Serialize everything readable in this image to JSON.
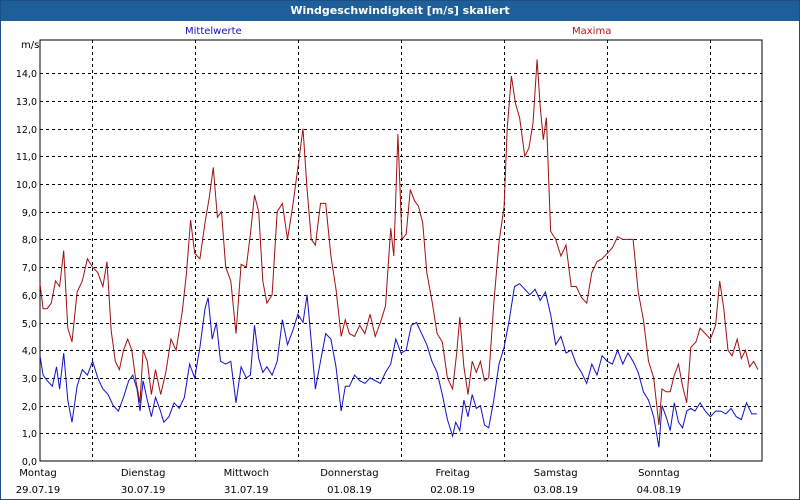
{
  "window": {
    "title": "Windgeschwindigkeit [m/s] skaliert"
  },
  "legend": {
    "mean_label": "Mittelwerte",
    "max_label": "Maxima"
  },
  "colors": {
    "mean": "#1010c8",
    "max": "#a01010",
    "grid": "#000000"
  },
  "chart_data": {
    "type": "line",
    "title": "Windgeschwindigkeit [m/s] skaliert",
    "ylabel": "m/s",
    "ylim": [
      0,
      15
    ],
    "yticks": [
      "0,0",
      "1,0",
      "2,0",
      "3,0",
      "4,0",
      "5,0",
      "6,0",
      "7,0",
      "8,0",
      "9,0",
      "10,0",
      "11,0",
      "12,0",
      "13,0",
      "14,0"
    ],
    "xlim": [
      0,
      7
    ],
    "xticks": [
      {
        "day": "Montag",
        "date": "29.07.19"
      },
      {
        "day": "Dienstag",
        "date": "30.07.19"
      },
      {
        "day": "Mittwoch",
        "date": "31.07.19"
      },
      {
        "day": "Donnerstag",
        "date": "01.08.19"
      },
      {
        "day": "Freitag",
        "date": "02.08.19"
      },
      {
        "day": "Samstag",
        "date": "03.08.19"
      },
      {
        "day": "Sonntag",
        "date": "04.08.19"
      }
    ],
    "grid": true,
    "series": [
      {
        "name": "Mittelwerte",
        "color": "#1010c8",
        "points": [
          [
            0.0,
            3.8
          ],
          [
            0.03,
            3.1
          ],
          [
            0.07,
            2.9
          ],
          [
            0.12,
            2.7
          ],
          [
            0.16,
            3.4
          ],
          [
            0.19,
            2.6
          ],
          [
            0.23,
            3.9
          ],
          [
            0.27,
            2.2
          ],
          [
            0.31,
            1.4
          ],
          [
            0.36,
            2.7
          ],
          [
            0.41,
            3.3
          ],
          [
            0.46,
            3.1
          ],
          [
            0.51,
            3.6
          ],
          [
            0.56,
            3.0
          ],
          [
            0.61,
            2.6
          ],
          [
            0.66,
            2.4
          ],
          [
            0.71,
            2.0
          ],
          [
            0.76,
            1.8
          ],
          [
            0.81,
            2.3
          ],
          [
            0.86,
            2.9
          ],
          [
            0.9,
            3.1
          ],
          [
            0.94,
            2.6
          ],
          [
            0.97,
            1.8
          ],
          [
            1.0,
            2.9
          ],
          [
            1.04,
            2.2
          ],
          [
            1.08,
            1.6
          ],
          [
            1.12,
            2.3
          ],
          [
            1.16,
            1.9
          ],
          [
            1.2,
            1.4
          ],
          [
            1.25,
            1.6
          ],
          [
            1.3,
            2.1
          ],
          [
            1.35,
            1.9
          ],
          [
            1.4,
            2.3
          ],
          [
            1.45,
            3.5
          ],
          [
            1.5,
            3.0
          ],
          [
            1.55,
            4.1
          ],
          [
            1.6,
            5.5
          ],
          [
            1.63,
            5.9
          ],
          [
            1.67,
            4.4
          ],
          [
            1.71,
            5.0
          ],
          [
            1.75,
            3.6
          ],
          [
            1.8,
            3.5
          ],
          [
            1.85,
            3.6
          ],
          [
            1.9,
            2.1
          ],
          [
            1.95,
            3.4
          ],
          [
            2.0,
            3.0
          ],
          [
            2.04,
            3.1
          ],
          [
            2.08,
            4.9
          ],
          [
            2.12,
            3.7
          ],
          [
            2.16,
            3.2
          ],
          [
            2.2,
            3.4
          ],
          [
            2.25,
            3.1
          ],
          [
            2.3,
            3.6
          ],
          [
            2.35,
            5.1
          ],
          [
            2.4,
            4.2
          ],
          [
            2.45,
            4.7
          ],
          [
            2.5,
            5.3
          ],
          [
            2.55,
            5.0
          ],
          [
            2.59,
            6.0
          ],
          [
            2.63,
            4.3
          ],
          [
            2.67,
            2.6
          ],
          [
            2.72,
            3.6
          ],
          [
            2.77,
            4.6
          ],
          [
            2.82,
            4.4
          ],
          [
            2.87,
            3.4
          ],
          [
            2.92,
            1.8
          ],
          [
            2.96,
            2.7
          ],
          [
            3.0,
            2.7
          ],
          [
            3.05,
            3.1
          ],
          [
            3.1,
            2.9
          ],
          [
            3.15,
            2.8
          ],
          [
            3.2,
            3.0
          ],
          [
            3.25,
            2.9
          ],
          [
            3.3,
            2.8
          ],
          [
            3.35,
            3.2
          ],
          [
            3.4,
            3.5
          ],
          [
            3.45,
            4.4
          ],
          [
            3.5,
            3.9
          ],
          [
            3.55,
            4.0
          ],
          [
            3.6,
            4.9
          ],
          [
            3.65,
            5.0
          ],
          [
            3.7,
            4.6
          ],
          [
            3.75,
            4.2
          ],
          [
            3.8,
            3.6
          ],
          [
            3.85,
            3.2
          ],
          [
            3.9,
            2.4
          ],
          [
            3.95,
            1.5
          ],
          [
            4.0,
            0.9
          ],
          [
            4.03,
            1.4
          ],
          [
            4.07,
            1.1
          ],
          [
            4.11,
            2.2
          ],
          [
            4.15,
            1.6
          ],
          [
            4.19,
            2.4
          ],
          [
            4.23,
            1.9
          ],
          [
            4.27,
            2.0
          ],
          [
            4.31,
            1.3
          ],
          [
            4.35,
            1.2
          ],
          [
            4.4,
            2.2
          ],
          [
            4.45,
            3.5
          ],
          [
            4.5,
            4.1
          ],
          [
            4.55,
            5.1
          ],
          [
            4.6,
            6.3
          ],
          [
            4.65,
            6.4
          ],
          [
            4.7,
            6.2
          ],
          [
            4.75,
            6.0
          ],
          [
            4.8,
            6.2
          ],
          [
            4.85,
            5.8
          ],
          [
            4.9,
            6.1
          ],
          [
            4.95,
            5.3
          ],
          [
            5.0,
            4.2
          ],
          [
            5.05,
            4.5
          ],
          [
            5.1,
            3.9
          ],
          [
            5.15,
            4.0
          ],
          [
            5.2,
            3.5
          ],
          [
            5.25,
            3.2
          ],
          [
            5.3,
            2.8
          ],
          [
            5.35,
            3.5
          ],
          [
            5.4,
            3.1
          ],
          [
            5.45,
            3.8
          ],
          [
            5.5,
            3.6
          ],
          [
            5.55,
            3.5
          ],
          [
            5.6,
            4.0
          ],
          [
            5.65,
            3.5
          ],
          [
            5.7,
            3.9
          ],
          [
            5.75,
            3.6
          ],
          [
            5.8,
            3.2
          ],
          [
            5.85,
            2.5
          ],
          [
            5.9,
            2.2
          ],
          [
            5.95,
            1.6
          ],
          [
            6.0,
            0.5
          ],
          [
            6.03,
            2.0
          ],
          [
            6.07,
            1.6
          ],
          [
            6.11,
            1.1
          ],
          [
            6.15,
            2.1
          ],
          [
            6.19,
            1.4
          ],
          [
            6.23,
            1.2
          ],
          [
            6.27,
            1.8
          ],
          [
            6.31,
            1.9
          ],
          [
            6.35,
            1.8
          ],
          [
            6.4,
            2.1
          ],
          [
            6.45,
            1.8
          ],
          [
            6.5,
            1.6
          ],
          [
            6.55,
            1.8
          ],
          [
            6.6,
            1.8
          ],
          [
            6.65,
            1.7
          ],
          [
            6.7,
            1.9
          ],
          [
            6.75,
            1.6
          ],
          [
            6.8,
            1.5
          ],
          [
            6.85,
            2.1
          ],
          [
            6.9,
            1.7
          ],
          [
            6.95,
            1.7
          ]
        ]
      },
      {
        "name": "Maxima",
        "color": "#a01010",
        "points": [
          [
            0.0,
            6.4
          ],
          [
            0.03,
            5.5
          ],
          [
            0.07,
            5.5
          ],
          [
            0.11,
            5.7
          ],
          [
            0.15,
            6.5
          ],
          [
            0.19,
            6.3
          ],
          [
            0.23,
            7.6
          ],
          [
            0.27,
            4.8
          ],
          [
            0.31,
            4.3
          ],
          [
            0.36,
            6.1
          ],
          [
            0.41,
            6.5
          ],
          [
            0.46,
            7.3
          ],
          [
            0.51,
            7.0
          ],
          [
            0.56,
            6.8
          ],
          [
            0.61,
            6.3
          ],
          [
            0.65,
            7.2
          ],
          [
            0.69,
            4.7
          ],
          [
            0.73,
            3.6
          ],
          [
            0.77,
            3.3
          ],
          [
            0.81,
            4.0
          ],
          [
            0.85,
            4.4
          ],
          [
            0.89,
            4.0
          ],
          [
            0.93,
            2.9
          ],
          [
            0.97,
            2.1
          ],
          [
            1.0,
            4.0
          ],
          [
            1.04,
            3.6
          ],
          [
            1.08,
            2.4
          ],
          [
            1.12,
            3.3
          ],
          [
            1.17,
            2.4
          ],
          [
            1.22,
            3.2
          ],
          [
            1.27,
            4.4
          ],
          [
            1.32,
            4.0
          ],
          [
            1.38,
            5.4
          ],
          [
            1.42,
            6.8
          ],
          [
            1.46,
            8.7
          ],
          [
            1.5,
            7.5
          ],
          [
            1.55,
            7.3
          ],
          [
            1.6,
            8.6
          ],
          [
            1.64,
            9.5
          ],
          [
            1.68,
            10.6
          ],
          [
            1.72,
            8.8
          ],
          [
            1.76,
            9.0
          ],
          [
            1.8,
            7.0
          ],
          [
            1.85,
            6.5
          ],
          [
            1.9,
            4.6
          ],
          [
            1.95,
            7.1
          ],
          [
            2.0,
            7.0
          ],
          [
            2.04,
            8.2
          ],
          [
            2.08,
            9.6
          ],
          [
            2.12,
            9.0
          ],
          [
            2.16,
            6.5
          ],
          [
            2.2,
            5.7
          ],
          [
            2.25,
            6.0
          ],
          [
            2.3,
            9.0
          ],
          [
            2.35,
            9.3
          ],
          [
            2.4,
            8.0
          ],
          [
            2.45,
            9.2
          ],
          [
            2.5,
            10.6
          ],
          [
            2.55,
            12.0
          ],
          [
            2.59,
            9.8
          ],
          [
            2.63,
            8.0
          ],
          [
            2.67,
            7.8
          ],
          [
            2.72,
            9.3
          ],
          [
            2.77,
            9.3
          ],
          [
            2.82,
            7.4
          ],
          [
            2.87,
            6.2
          ],
          [
            2.92,
            4.5
          ],
          [
            2.96,
            5.1
          ],
          [
            3.0,
            4.6
          ],
          [
            3.05,
            4.5
          ],
          [
            3.1,
            4.9
          ],
          [
            3.15,
            4.6
          ],
          [
            3.2,
            5.3
          ],
          [
            3.25,
            4.5
          ],
          [
            3.3,
            5.0
          ],
          [
            3.35,
            5.6
          ],
          [
            3.4,
            8.4
          ],
          [
            3.43,
            7.4
          ],
          [
            3.47,
            11.8
          ],
          [
            3.51,
            8.0
          ],
          [
            3.55,
            8.2
          ],
          [
            3.59,
            9.8
          ],
          [
            3.63,
            9.4
          ],
          [
            3.67,
            9.2
          ],
          [
            3.71,
            8.6
          ],
          [
            3.75,
            6.8
          ],
          [
            3.8,
            5.8
          ],
          [
            3.85,
            4.6
          ],
          [
            3.9,
            4.3
          ],
          [
            3.95,
            3.0
          ],
          [
            4.0,
            2.6
          ],
          [
            4.04,
            3.9
          ],
          [
            4.07,
            5.2
          ],
          [
            4.11,
            3.4
          ],
          [
            4.15,
            2.4
          ],
          [
            4.19,
            3.6
          ],
          [
            4.23,
            3.2
          ],
          [
            4.27,
            3.6
          ],
          [
            4.31,
            2.9
          ],
          [
            4.35,
            3.0
          ],
          [
            4.4,
            5.7
          ],
          [
            4.45,
            7.9
          ],
          [
            4.5,
            9.2
          ],
          [
            4.53,
            12.0
          ],
          [
            4.57,
            13.9
          ],
          [
            4.61,
            12.9
          ],
          [
            4.65,
            12.4
          ],
          [
            4.7,
            11.0
          ],
          [
            4.74,
            11.3
          ],
          [
            4.78,
            12.2
          ],
          [
            4.82,
            14.5
          ],
          [
            4.85,
            12.8
          ],
          [
            4.88,
            11.6
          ],
          [
            4.91,
            12.4
          ],
          [
            4.95,
            8.3
          ],
          [
            5.0,
            8.0
          ],
          [
            5.05,
            7.4
          ],
          [
            5.1,
            7.8
          ],
          [
            5.15,
            6.3
          ],
          [
            5.2,
            6.3
          ],
          [
            5.25,
            5.9
          ],
          [
            5.3,
            5.7
          ],
          [
            5.35,
            6.8
          ],
          [
            5.4,
            7.2
          ],
          [
            5.45,
            7.3
          ],
          [
            5.5,
            7.5
          ],
          [
            5.55,
            7.7
          ],
          [
            5.6,
            8.1
          ],
          [
            5.65,
            8.0
          ],
          [
            5.7,
            8.0
          ],
          [
            5.75,
            8.0
          ],
          [
            5.8,
            6.1
          ],
          [
            5.85,
            5.1
          ],
          [
            5.9,
            3.6
          ],
          [
            5.95,
            3.0
          ],
          [
            6.0,
            1.3
          ],
          [
            6.03,
            2.6
          ],
          [
            6.07,
            2.5
          ],
          [
            6.11,
            2.5
          ],
          [
            6.15,
            3.1
          ],
          [
            6.19,
            3.5
          ],
          [
            6.23,
            2.7
          ],
          [
            6.27,
            2.1
          ],
          [
            6.31,
            4.1
          ],
          [
            6.36,
            4.3
          ],
          [
            6.4,
            4.8
          ],
          [
            6.45,
            4.6
          ],
          [
            6.5,
            4.4
          ],
          [
            6.55,
            4.9
          ],
          [
            6.59,
            6.5
          ],
          [
            6.63,
            5.5
          ],
          [
            6.67,
            4.0
          ],
          [
            6.71,
            3.8
          ],
          [
            6.76,
            4.4
          ],
          [
            6.8,
            3.7
          ],
          [
            6.84,
            4.0
          ],
          [
            6.88,
            3.4
          ],
          [
            6.92,
            3.6
          ],
          [
            6.96,
            3.3
          ]
        ]
      }
    ]
  }
}
